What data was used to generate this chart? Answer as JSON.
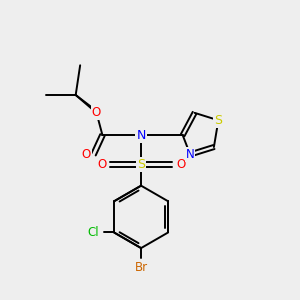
{
  "background_color": "#eeeeee",
  "bond_color": "#000000",
  "atom_colors": {
    "N": "#0000ff",
    "O": "#ff0000",
    "S_sulfonyl": "#cccc00",
    "S_thiazole": "#cccc00",
    "Cl": "#00bb00",
    "Br": "#cc6600",
    "C": "#000000"
  },
  "figsize": [
    3.0,
    3.0
  ],
  "dpi": 100
}
